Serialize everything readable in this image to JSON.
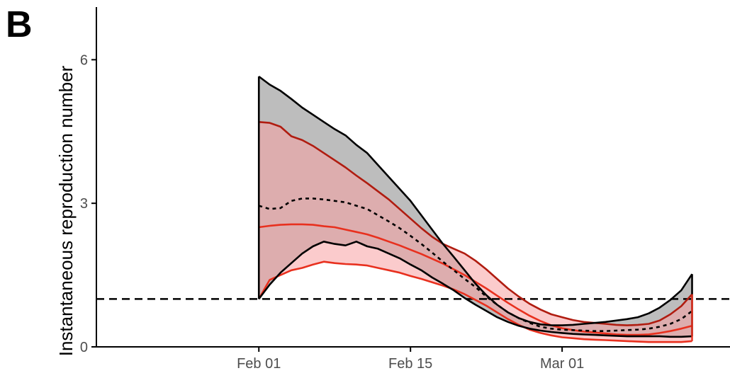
{
  "panel_label": "B",
  "colors": {
    "black": "#000000",
    "red": "#e8301e",
    "dark_red": "#b01c10",
    "grey_fill": "#bdbdbd",
    "pink_fill": "#f7a1a3",
    "overlap_fill": "#c08a8b"
  },
  "chart_data": {
    "type": "area",
    "title": "",
    "xlabel": "",
    "ylabel": "Instantaneous reproduction number",
    "x_ticks": [
      "Feb 01",
      "Feb 15",
      "Mar 01"
    ],
    "x_tick_days": [
      0,
      14,
      28
    ],
    "y_ticks": [
      0,
      3,
      6
    ],
    "xlim_days": [
      -15,
      43.5
    ],
    "ylim": [
      0,
      7.1
    ],
    "reference_line": {
      "y": 1,
      "style": "dashed"
    },
    "grid": false,
    "legend": "none",
    "x_days": [
      0,
      1,
      2,
      3,
      4,
      5,
      6,
      7,
      8,
      9,
      10,
      11,
      12,
      13,
      14,
      15,
      16,
      17,
      18,
      19,
      20,
      21,
      22,
      23,
      24,
      25,
      26,
      27,
      28,
      29,
      30,
      31,
      32,
      33,
      34,
      35,
      36,
      37,
      38,
      39,
      40
    ],
    "series": [
      {
        "name": "",
        "color": "#000000",
        "fill": "#bdbdbd",
        "lower": [
          1.0,
          1.3,
          1.55,
          1.75,
          1.95,
          2.1,
          2.2,
          2.15,
          2.12,
          2.2,
          2.1,
          2.05,
          1.95,
          1.85,
          1.72,
          1.6,
          1.45,
          1.32,
          1.18,
          1.02,
          0.88,
          0.75,
          0.62,
          0.52,
          0.44,
          0.38,
          0.34,
          0.31,
          0.29,
          0.27,
          0.26,
          0.25,
          0.24,
          0.23,
          0.22,
          0.22,
          0.22,
          0.22,
          0.21,
          0.21,
          0.22
        ],
        "median": [
          2.95,
          2.88,
          2.9,
          3.05,
          3.1,
          3.1,
          3.08,
          3.05,
          3.02,
          2.95,
          2.88,
          2.75,
          2.62,
          2.48,
          2.32,
          2.15,
          1.97,
          1.78,
          1.6,
          1.42,
          1.25,
          1.05,
          0.88,
          0.72,
          0.6,
          0.5,
          0.42,
          0.38,
          0.36,
          0.35,
          0.34,
          0.33,
          0.33,
          0.34,
          0.35,
          0.36,
          0.38,
          0.42,
          0.48,
          0.58,
          0.75
        ],
        "upper": [
          5.65,
          5.48,
          5.35,
          5.18,
          5.0,
          4.85,
          4.7,
          4.55,
          4.42,
          4.22,
          4.05,
          3.8,
          3.55,
          3.3,
          3.05,
          2.75,
          2.45,
          2.15,
          1.88,
          1.6,
          1.32,
          1.08,
          0.88,
          0.72,
          0.6,
          0.52,
          0.47,
          0.45,
          0.45,
          0.46,
          0.48,
          0.5,
          0.52,
          0.55,
          0.58,
          0.62,
          0.7,
          0.82,
          0.98,
          1.18,
          1.52
        ]
      },
      {
        "name": "",
        "color": "#e8301e",
        "median_color": "#e8301e",
        "upper_color": "#b01c10",
        "fill": "#f7a1a3",
        "lower": [
          1.0,
          1.4,
          1.5,
          1.6,
          1.65,
          1.72,
          1.78,
          1.75,
          1.73,
          1.72,
          1.7,
          1.65,
          1.6,
          1.55,
          1.48,
          1.42,
          1.35,
          1.28,
          1.2,
          1.1,
          0.98,
          0.86,
          0.72,
          0.58,
          0.46,
          0.36,
          0.29,
          0.24,
          0.2,
          0.18,
          0.16,
          0.15,
          0.14,
          0.13,
          0.12,
          0.11,
          0.1,
          0.1,
          0.1,
          0.1,
          0.12
        ],
        "median": [
          2.5,
          2.53,
          2.55,
          2.56,
          2.56,
          2.55,
          2.52,
          2.5,
          2.45,
          2.4,
          2.35,
          2.28,
          2.2,
          2.12,
          2.03,
          1.94,
          1.84,
          1.74,
          1.62,
          1.5,
          1.36,
          1.22,
          1.07,
          0.92,
          0.78,
          0.65,
          0.54,
          0.45,
          0.39,
          0.35,
          0.32,
          0.3,
          0.28,
          0.26,
          0.25,
          0.25,
          0.26,
          0.29,
          0.33,
          0.38,
          0.44
        ],
        "upper": [
          4.7,
          4.68,
          4.6,
          4.4,
          4.32,
          4.2,
          4.05,
          3.9,
          3.75,
          3.58,
          3.42,
          3.25,
          3.08,
          2.88,
          2.68,
          2.48,
          2.3,
          2.15,
          2.05,
          1.95,
          1.8,
          1.62,
          1.42,
          1.22,
          1.05,
          0.9,
          0.78,
          0.68,
          0.62,
          0.56,
          0.52,
          0.5,
          0.48,
          0.46,
          0.45,
          0.46,
          0.48,
          0.55,
          0.68,
          0.85,
          1.1
        ]
      }
    ]
  }
}
